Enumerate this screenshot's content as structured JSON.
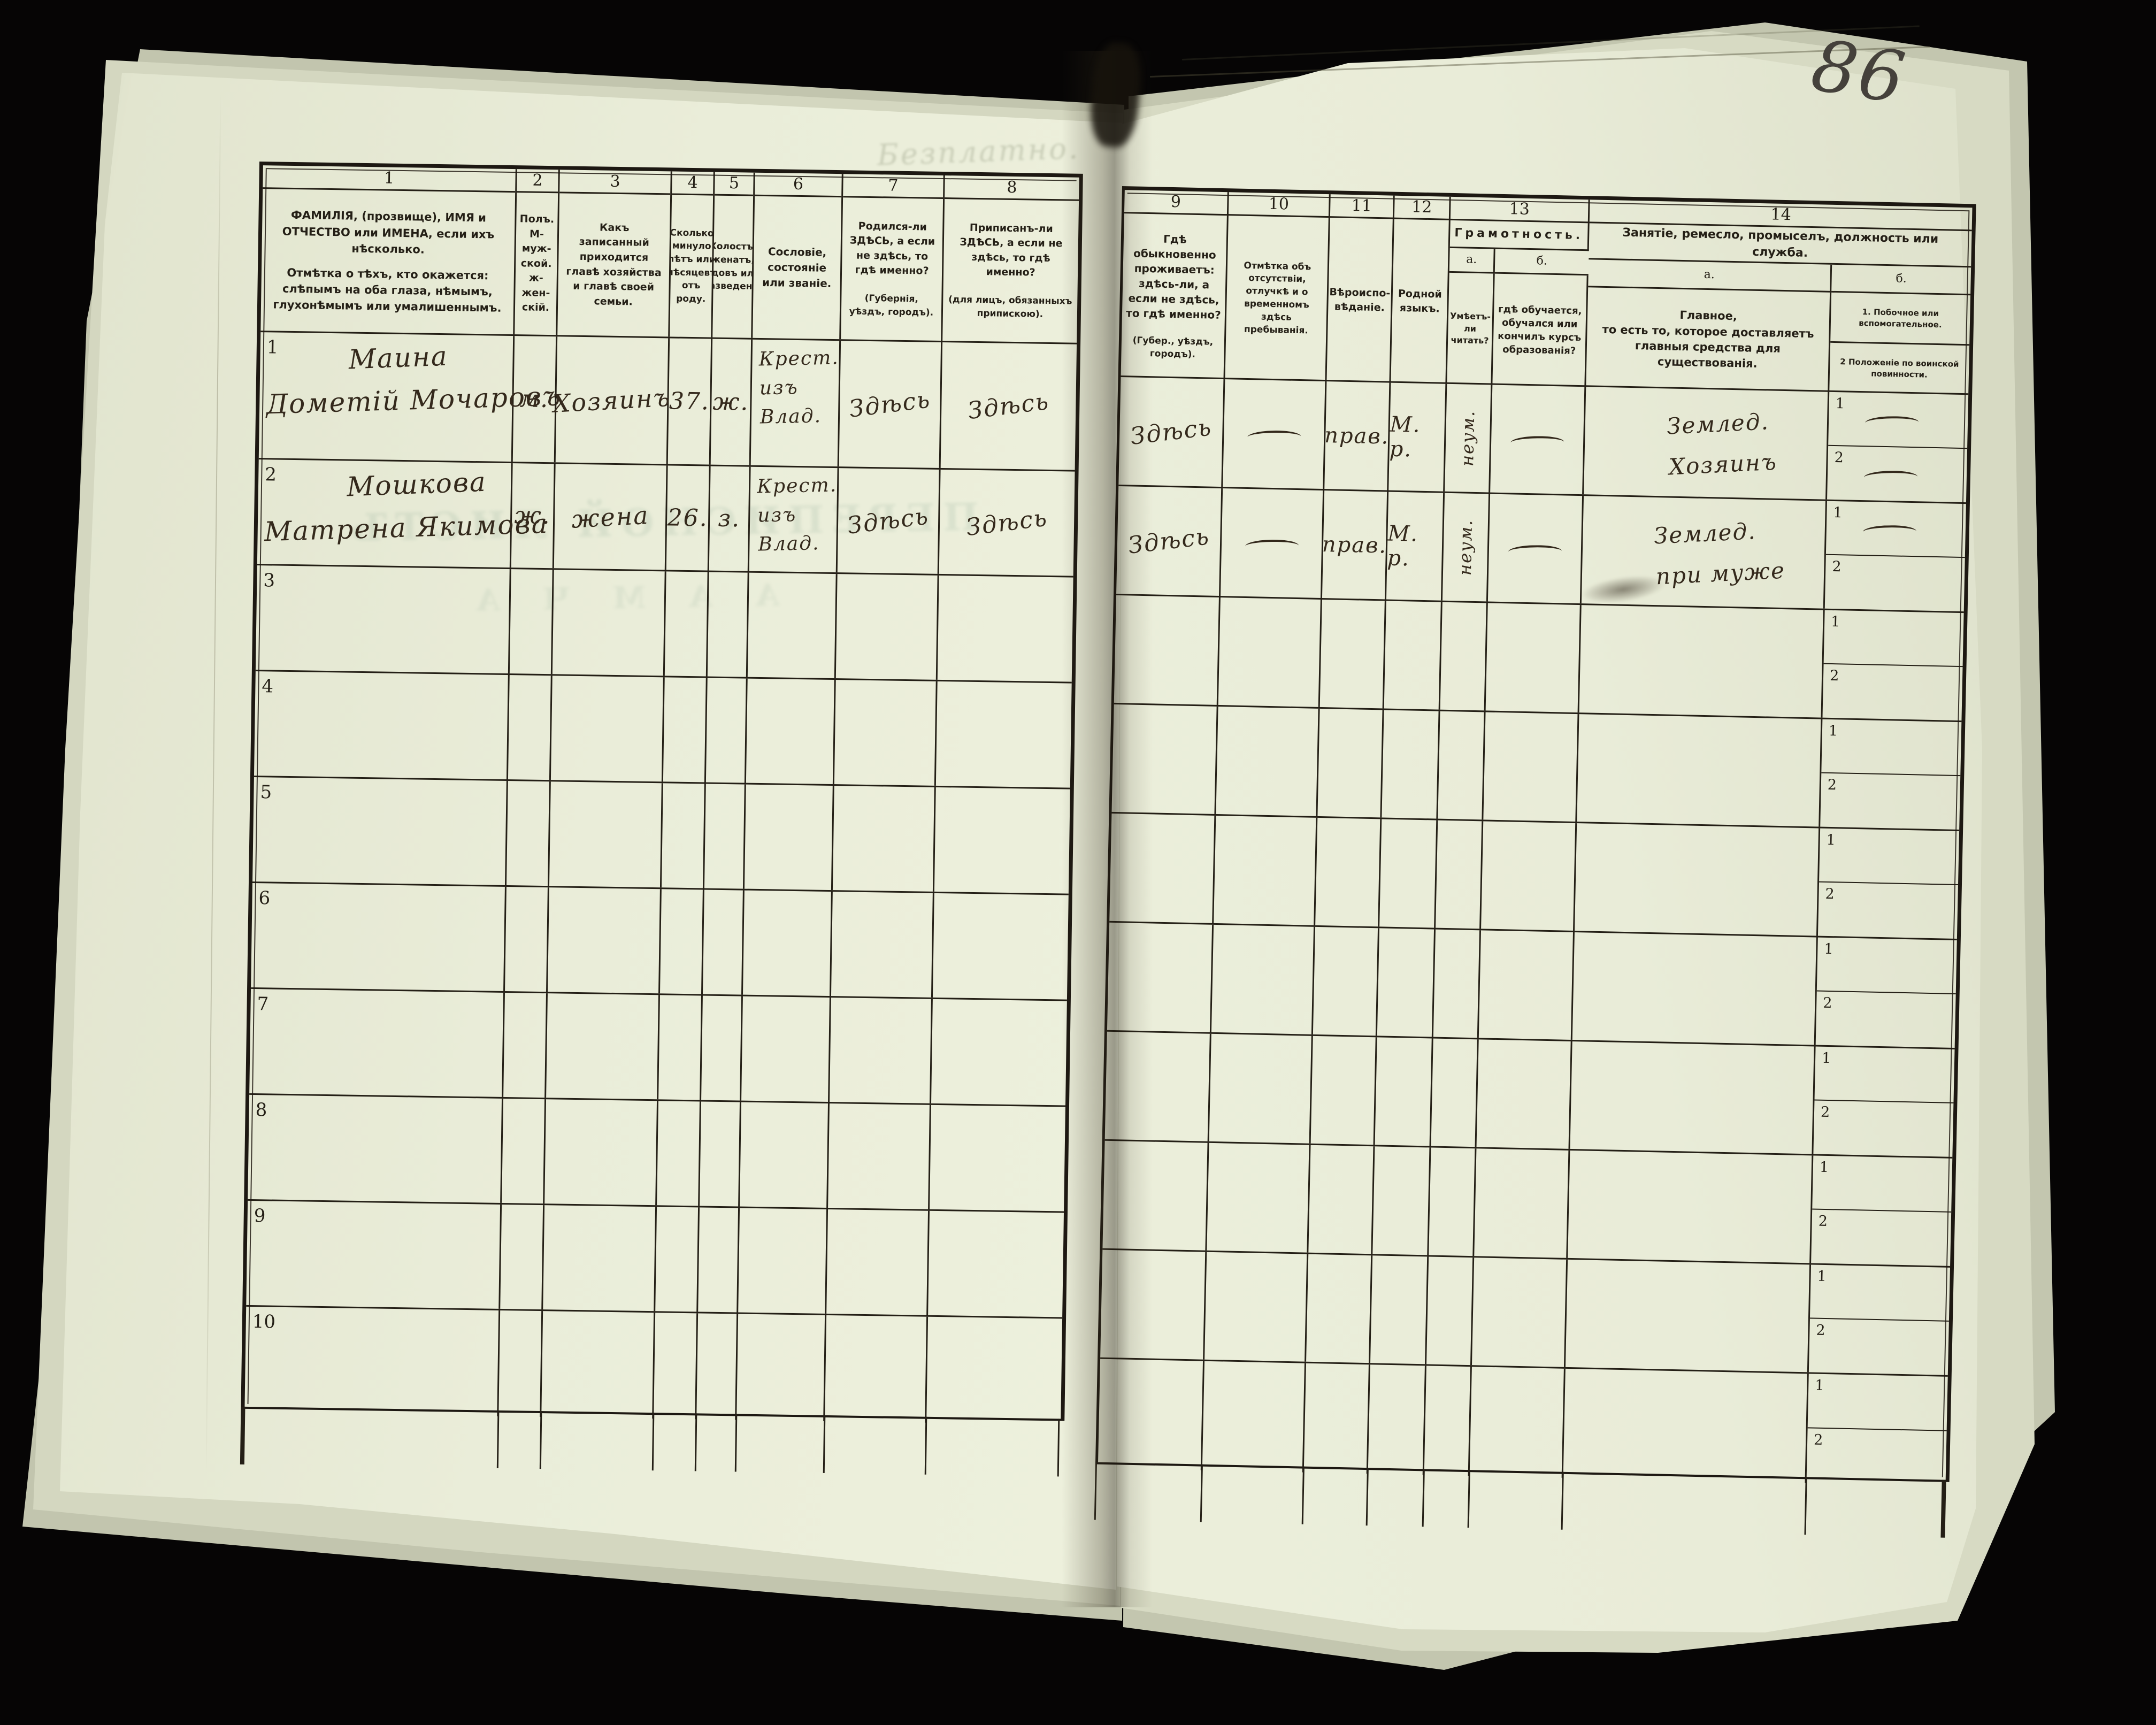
{
  "page": {
    "number": "86"
  },
  "left_table": {
    "header": {
      "c1": {
        "num": "1",
        "line1": "ФАМИЛІЯ, (прозвище), ИМЯ и ОТЧЕСТВО или ИМЕНА, если ихъ нѣсколько.",
        "line2": "Отмѣтка о тѣхъ, кто окажется: слѣпымъ на оба глаза, нѣмымъ, глухонѣмымъ или умалишеннымъ."
      },
      "c2": {
        "num": "2",
        "text": "Полъ.\nМ-муж-\nской.\nж-жен-\nскій."
      },
      "c3": {
        "num": "3",
        "text": "Какъ записанный приходится главѣ хозяйства и главѣ своей семьи."
      },
      "c4": {
        "num": "4",
        "text": "Сколько минуло лѣтъ или мѣсяцевъ отъ роду."
      },
      "c5": {
        "num": "5",
        "text": "Холостъ, женатъ, вдовъ или разведенъ."
      },
      "c6": {
        "num": "6",
        "text": "Сословіе, состояніе или званіе."
      },
      "c7": {
        "num": "7",
        "text": "Родился-ли ЗДѢСЬ, а если не здѣсь, то гдѣ именно?",
        "note": "(Губернія, уѣздъ, городъ)."
      },
      "c8": {
        "num": "8",
        "text": "Приписанъ-ли ЗДѢСЬ, а если не здѣсь, то гдѣ именно?",
        "note": "(для лицъ, обязанныхъ припискою)."
      }
    }
  },
  "right_table": {
    "header": {
      "c9": {
        "num": "9",
        "text": "Гдѣ обыкновенно проживаетъ: здѣсь-ли, а если не здѣсь, то гдѣ именно?",
        "note": "(Губер., уѣздъ, городъ)."
      },
      "c10": {
        "num": "10",
        "text": "Отмѣтка объ отсутствіи, отлучкѣ и о временномъ здѣсь пребыванія."
      },
      "c11": {
        "num": "11",
        "text": "Вѣроиспо-\nвѣданіе."
      },
      "c12": {
        "num": "12",
        "text": "Родной\nязыкъ."
      },
      "c13": {
        "num": "13",
        "title": "Грамотность.",
        "a_label": "а.",
        "b_label": "б.",
        "a_text": "Умѣетъ-\nли\nчитать?",
        "b_text": "гдѣ обучается,\nобучался или\nкончилъ курсъ\nобразованія?"
      },
      "c14": {
        "num": "14",
        "title": "Занятіе, ремесло, промыселъ, должность или служба.",
        "a_label": "а.",
        "b_label": "б.",
        "a_text": "Главное,\nто есть то, которое доставляетъ\nглавныя средства для существованія.",
        "b1_text": "1.  Побочное или вспомогательное.",
        "b2_text": "2   Положеніе по воинской повинности."
      }
    },
    "subrow_labels": [
      "1",
      "2"
    ]
  },
  "body": {
    "rows": [
      {
        "no": "1",
        "surname": "Маина",
        "name": "Дометій Мочаровъ",
        "sex": "м.",
        "relation": "Хозяинъ",
        "age": "37.",
        "marital": "ж.",
        "estate": "Крест.\nизъ\nВлад.",
        "born": "Здѣсь",
        "registered": "Здѣсь",
        "resides": "Здѣсь",
        "absence": "—",
        "religion": "прав.",
        "language": "М. р.",
        "literacy": "неум.",
        "education": "—",
        "occupation": "Землед.\nХозяинъ",
        "side1": "—",
        "side2": "—"
      },
      {
        "no": "2",
        "surname": "Мошкова",
        "name": "Матрена Якимова",
        "sex": "ж.",
        "relation": "жена",
        "age": "26.",
        "marital": "з.",
        "estate": "Крест.\nизъ\nВлад.",
        "born": "Здѣсь",
        "registered": "Здѣсь",
        "resides": "Здѣсь",
        "absence": "—",
        "religion": "прав.",
        "language": "М. р.",
        "literacy": "неум.",
        "education": "—",
        "occupation": "Землед.\nпри муже",
        "side1": "—",
        "side2": ""
      },
      {
        "no": "3",
        "surname": "",
        "name": "",
        "sex": "",
        "relation": "",
        "age": "",
        "marital": "",
        "estate": "",
        "born": "",
        "registered": "",
        "resides": "",
        "absence": "",
        "religion": "",
        "language": "",
        "literacy": "",
        "education": "",
        "occupation": "",
        "side1": "",
        "side2": ""
      },
      {
        "no": "4",
        "surname": "",
        "name": "",
        "sex": "",
        "relation": "",
        "age": "",
        "marital": "",
        "estate": "",
        "born": "",
        "registered": "",
        "resides": "",
        "absence": "",
        "religion": "",
        "language": "",
        "literacy": "",
        "education": "",
        "occupation": "",
        "side1": "",
        "side2": ""
      },
      {
        "no": "5",
        "surname": "",
        "name": "",
        "sex": "",
        "relation": "",
        "age": "",
        "marital": "",
        "estate": "",
        "born": "",
        "registered": "",
        "resides": "",
        "absence": "",
        "religion": "",
        "language": "",
        "literacy": "",
        "education": "",
        "occupation": "",
        "side1": "",
        "side2": ""
      },
      {
        "no": "6",
        "surname": "",
        "name": "",
        "sex": "",
        "relation": "",
        "age": "",
        "marital": "",
        "estate": "",
        "born": "",
        "registered": "",
        "resides": "",
        "absence": "",
        "religion": "",
        "language": "",
        "literacy": "",
        "education": "",
        "occupation": "",
        "side1": "",
        "side2": ""
      },
      {
        "no": "7",
        "surname": "",
        "name": "",
        "sex": "",
        "relation": "",
        "age": "",
        "marital": "",
        "estate": "",
        "born": "",
        "registered": "",
        "resides": "",
        "absence": "",
        "religion": "",
        "language": "",
        "literacy": "",
        "education": "",
        "occupation": "",
        "side1": "",
        "side2": ""
      },
      {
        "no": "8",
        "surname": "",
        "name": "",
        "sex": "",
        "relation": "",
        "age": "",
        "marital": "",
        "estate": "",
        "born": "",
        "registered": "",
        "resides": "",
        "absence": "",
        "religion": "",
        "language": "",
        "literacy": "",
        "education": "",
        "occupation": "",
        "side1": "",
        "side2": ""
      },
      {
        "no": "9",
        "surname": "",
        "name": "",
        "sex": "",
        "relation": "",
        "age": "",
        "marital": "",
        "estate": "",
        "born": "",
        "registered": "",
        "resides": "",
        "absence": "",
        "religion": "",
        "language": "",
        "literacy": "",
        "education": "",
        "occupation": "",
        "side1": "",
        "side2": ""
      },
      {
        "no": "10",
        "surname": "",
        "name": "",
        "sex": "",
        "relation": "",
        "age": "",
        "marital": "",
        "estate": "",
        "born": "",
        "registered": "",
        "resides": "",
        "absence": "",
        "religion": "",
        "language": "",
        "literacy": "",
        "education": "",
        "occupation": "",
        "side1": "",
        "side2": ""
      }
    ]
  },
  "ghosts": {
    "mirrored_title": "ПЕРЕПИСНОЙ ЛИСТЪ",
    "mirrored_letters": "А А М Ч А",
    "stamp": "Безплатно."
  }
}
